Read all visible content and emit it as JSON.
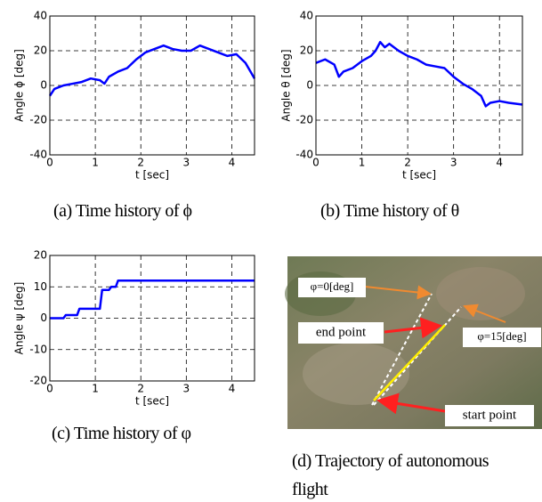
{
  "chart_data": [
    {
      "type": "line",
      "ylabel": "Angle ϕ [deg]",
      "xlabel": "t [sec]",
      "caption": "(a) Time history of ϕ",
      "x": [
        0,
        0.1,
        0.3,
        0.5,
        0.7,
        0.9,
        1.1,
        1.2,
        1.3,
        1.5,
        1.7,
        1.9,
        2.1,
        2.3,
        2.5,
        2.7,
        2.9,
        3.1,
        3.3,
        3.5,
        3.7,
        3.9,
        4.1,
        4.3,
        4.5
      ],
      "series": [
        {
          "color": "#0000ff",
          "values": [
            -6,
            -2,
            0,
            1,
            2,
            4,
            3,
            1,
            5,
            8,
            10,
            15,
            19,
            21,
            23,
            21,
            20,
            20,
            23,
            21,
            19,
            17,
            18,
            13,
            4
          ]
        }
      ],
      "xlim": [
        0,
        4.5
      ],
      "ylim": [
        -40,
        40
      ],
      "xticks": [
        0,
        1,
        2,
        3,
        4
      ],
      "yticks": [
        -40,
        -20,
        0,
        20,
        40
      ],
      "grid": true
    },
    {
      "type": "line",
      "ylabel": "Angle θ [deg]",
      "xlabel": "t [sec]",
      "caption": "(b) Time history of θ",
      "x": [
        0,
        0.2,
        0.4,
        0.5,
        0.6,
        0.8,
        1.0,
        1.2,
        1.3,
        1.4,
        1.5,
        1.6,
        1.8,
        2.0,
        2.2,
        2.4,
        2.6,
        2.8,
        3.0,
        3.2,
        3.4,
        3.6,
        3.7,
        3.8,
        4.0,
        4.2,
        4.5
      ],
      "series": [
        {
          "color": "#0000ff",
          "values": [
            13,
            15,
            12,
            5,
            8,
            10,
            14,
            17,
            20,
            25,
            22,
            24,
            20,
            17,
            15,
            12,
            11,
            10,
            5,
            1,
            -2,
            -6,
            -12,
            -10,
            -9,
            -10,
            -11
          ]
        }
      ],
      "xlim": [
        0,
        4.5
      ],
      "ylim": [
        -40,
        40
      ],
      "xticks": [
        0,
        1,
        2,
        3,
        4
      ],
      "yticks": [
        -40,
        -20,
        0,
        20,
        40
      ],
      "grid": true
    },
    {
      "type": "line",
      "ylabel": "Angle ψ [deg]",
      "xlabel": "t [sec]",
      "caption": "(c) Time history of φ",
      "x": [
        0,
        0.3,
        0.35,
        0.6,
        0.65,
        1.1,
        1.15,
        1.3,
        1.35,
        1.45,
        1.5,
        4.5
      ],
      "series": [
        {
          "color": "#0000ff",
          "values": [
            0,
            0,
            1,
            1,
            3,
            3,
            9,
            9,
            10,
            10,
            12,
            12
          ]
        }
      ],
      "xlim": [
        0,
        4.5
      ],
      "ylim": [
        -20,
        20
      ],
      "xticks": [
        0,
        1,
        2,
        3,
        4
      ],
      "yticks": [
        -20,
        -10,
        0,
        10,
        20
      ],
      "grid": true
    }
  ],
  "photo_panel": {
    "caption": "(d) Trajectory of autonomous flight",
    "labels": {
      "phi0": "φ=0[deg]",
      "end": "end point",
      "phi15": "φ=15[deg]",
      "start": "start point"
    }
  }
}
